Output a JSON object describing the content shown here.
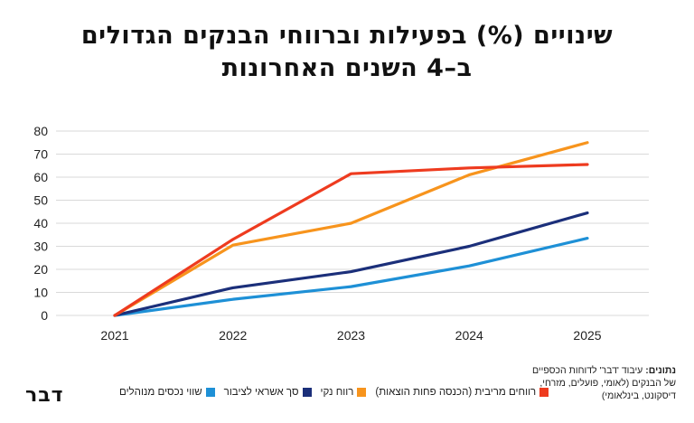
{
  "title": {
    "line1": "שינויים (%) בפעילות וברווחי הבנקים הגדולים",
    "line2": "ב–4 השנים האחרונות"
  },
  "chart_data": {
    "type": "line",
    "x": [
      "2021",
      "2022",
      "2023",
      "2024",
      "2025"
    ],
    "ylim": [
      0,
      80
    ],
    "yticks": [
      0,
      10,
      20,
      30,
      40,
      50,
      60,
      70,
      80
    ],
    "grid": true,
    "series": [
      {
        "name": "רווחים מריבית (הכנסה פחות הוצאות)",
        "color": "#ee3b1f",
        "values": [
          0,
          33,
          61.5,
          64,
          65.5
        ]
      },
      {
        "name": "רווח נקי",
        "color": "#f7941d",
        "values": [
          0,
          30.5,
          40,
          61,
          75
        ]
      },
      {
        "name": "סך אשראי לציבור",
        "color": "#1b2f7a",
        "values": [
          0,
          12,
          19,
          30,
          44.5
        ]
      },
      {
        "name": "שווי נכסים מנוהלים",
        "color": "#1e90d6",
        "values": [
          0,
          7,
          12.5,
          21.5,
          33.5
        ]
      }
    ]
  },
  "legend": {
    "items": [
      {
        "label": "רווחים מריבית (הכנסה פחות הוצאות)",
        "color": "#ee3b1f"
      },
      {
        "label": "רווח נקי",
        "color": "#f7941d"
      },
      {
        "label": "סך אשראי לציבור",
        "color": "#1b2f7a"
      },
      {
        "label": "שווי נכסים מנוהלים",
        "color": "#1e90d6"
      }
    ]
  },
  "source": {
    "label": "נתונים:",
    "text": "עיבוד 'דבר' לדוחות הכספיים של הבנקים (לאומי, פועלים, מזרחי, דיסקונט, בינלאומי)"
  },
  "logo": {
    "text": "דבר"
  }
}
